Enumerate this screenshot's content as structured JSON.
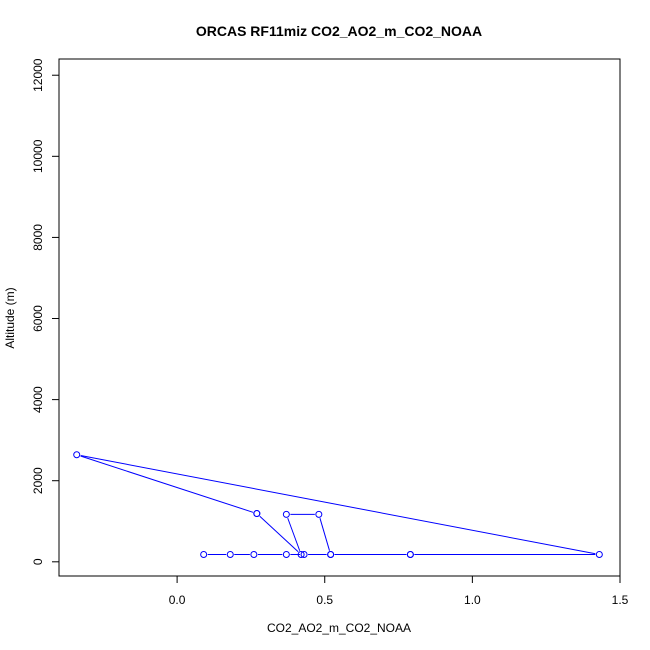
{
  "chart_data": {
    "type": "line",
    "title": "ORCAS RF11miz CO2_AO2_m_CO2_NOAA",
    "xlabel": "CO2_AO2_m_CO2_NOAA",
    "ylabel": "Altitude (m)",
    "xlim": [
      -0.4,
      1.5
    ],
    "ylim": [
      -350,
      12400
    ],
    "xticks": [
      0.0,
      0.5,
      1.0,
      1.5
    ],
    "xtick_labels": [
      "0.0",
      "0.5",
      "1.0",
      "1.5"
    ],
    "yticks": [
      0,
      2000,
      4000,
      6000,
      8000,
      10000,
      12000
    ],
    "ytick_labels": [
      "0",
      "2000",
      "4000",
      "6000",
      "8000",
      "10000",
      "12000"
    ],
    "grid": false,
    "line_color": "#0000ff",
    "series": [
      {
        "x": [
          0.09,
          0.18,
          0.26,
          0.37,
          0.43,
          0.52,
          0.79,
          1.43,
          -0.34,
          0.27,
          0.27,
          0.42,
          0.37,
          0.48,
          0.52,
          0.79
        ],
        "y": [
          180,
          180,
          180,
          180,
          180,
          180,
          180,
          180,
          2640,
          1190,
          1190,
          180,
          1170,
          1170,
          180,
          180
        ]
      }
    ]
  }
}
